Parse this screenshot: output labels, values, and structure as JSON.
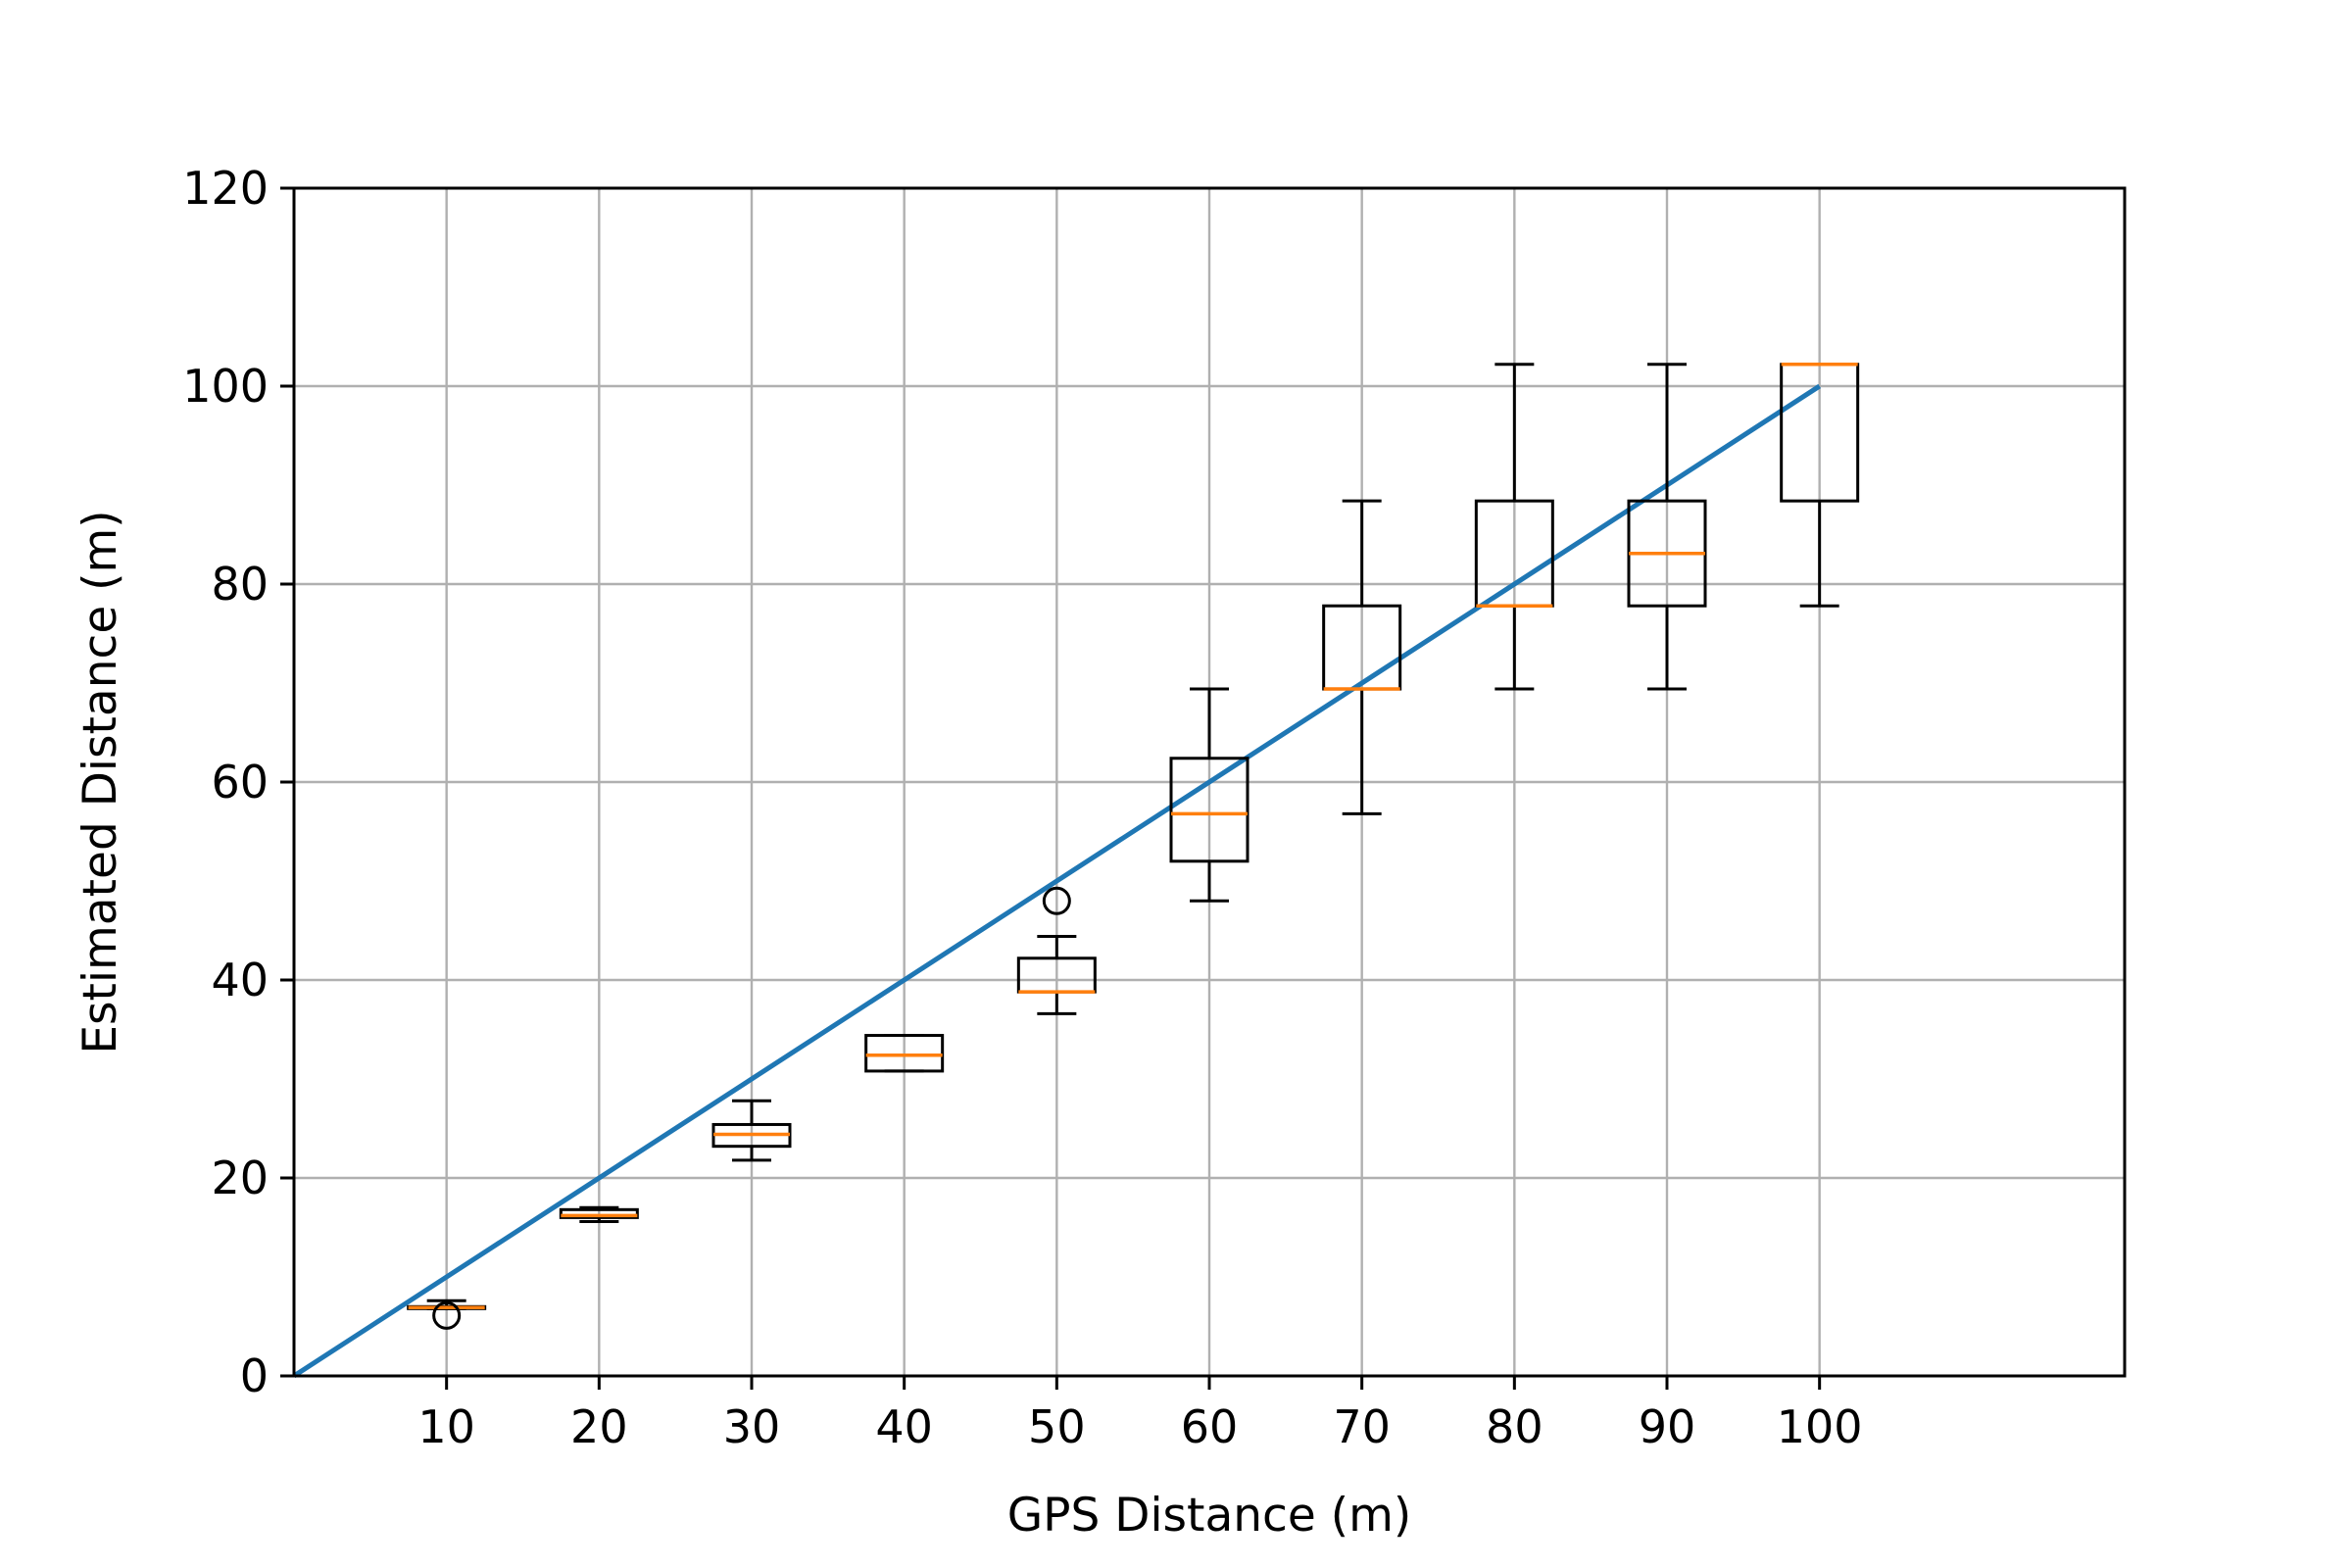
{
  "chart_data": {
    "type": "box",
    "title": "",
    "xlabel": "GPS Distance (m)",
    "ylabel": "Estimated Distance (m)",
    "xlim": [
      0,
      120
    ],
    "ylim": [
      0,
      120
    ],
    "x_ticks": [
      "10",
      "20",
      "30",
      "40",
      "50",
      "60",
      "70",
      "80",
      "90",
      "100"
    ],
    "y_ticks": [
      "0",
      "20",
      "40",
      "60",
      "80",
      "100",
      "120"
    ],
    "grid": true,
    "boxes": [
      {
        "x": 10,
        "whisker_low": 6.8,
        "q1": 6.8,
        "median": 6.9,
        "q3": 7.0,
        "whisker_high": 7.6,
        "outliers": [
          6.1
        ]
      },
      {
        "x": 20,
        "whisker_low": 15.6,
        "q1": 16.0,
        "median": 16.2,
        "q3": 16.8,
        "whisker_high": 17.0,
        "outliers": []
      },
      {
        "x": 30,
        "whisker_low": 21.8,
        "q1": 23.2,
        "median": 24.4,
        "q3": 25.4,
        "whisker_high": 27.8,
        "outliers": []
      },
      {
        "x": 40,
        "whisker_low": 30.8,
        "q1": 30.8,
        "median": 32.4,
        "q3": 34.4,
        "whisker_high": 34.4,
        "outliers": []
      },
      {
        "x": 50,
        "whisker_low": 36.6,
        "q1": 38.8,
        "median": 38.8,
        "q3": 42.2,
        "whisker_high": 44.4,
        "outliers": [
          48.0
        ]
      },
      {
        "x": 60,
        "whisker_low": 48.0,
        "q1": 52.0,
        "median": 56.8,
        "q3": 62.4,
        "whisker_high": 69.4,
        "outliers": []
      },
      {
        "x": 70,
        "whisker_low": 56.8,
        "q1": 69.4,
        "median": 69.4,
        "q3": 77.8,
        "whisker_high": 88.4,
        "outliers": []
      },
      {
        "x": 80,
        "whisker_low": 69.4,
        "q1": 77.8,
        "median": 77.8,
        "q3": 88.4,
        "whisker_high": 102.2,
        "outliers": []
      },
      {
        "x": 90,
        "whisker_low": 69.4,
        "q1": 77.8,
        "median": 83.1,
        "q3": 88.4,
        "whisker_high": 102.2,
        "outliers": []
      },
      {
        "x": 100,
        "whisker_low": 77.8,
        "q1": 88.4,
        "median": 102.2,
        "q3": 102.2,
        "whisker_high": 102.2,
        "outliers": []
      }
    ],
    "reference_line": {
      "x": [
        0,
        100
      ],
      "y": [
        0,
        100
      ]
    },
    "colors": {
      "box": "#000000",
      "median": "#ff7f0e",
      "reference_line": "#1f77b4",
      "grid": "#b0b0b0"
    }
  }
}
